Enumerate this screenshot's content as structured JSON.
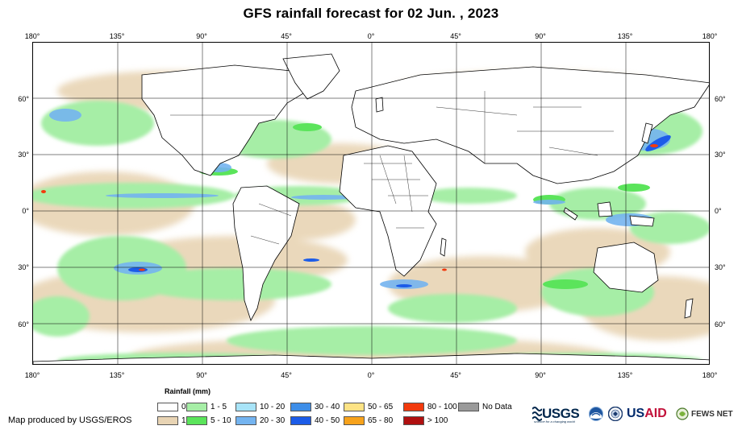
{
  "title": "GFS rainfall forecast for 02 Jun. , 2023",
  "longitude_labels": [
    "180°",
    "135°",
    "90°",
    "45°",
    "0°",
    "45°",
    "90°",
    "135°",
    "180°"
  ],
  "latitude_labels": [
    "60°",
    "30°",
    "0°",
    "30°",
    "60°"
  ],
  "legend": {
    "title": "Rainfall (mm)",
    "items": [
      {
        "label": "0",
        "color": "#ffffff"
      },
      {
        "label": "1",
        "color": "#e8d4b4"
      },
      {
        "label": "1 - 5",
        "color": "#a6eea6"
      },
      {
        "label": "5 - 10",
        "color": "#5be45b"
      },
      {
        "label": "10 - 20",
        "color": "#a8e4f8"
      },
      {
        "label": "20 - 30",
        "color": "#74b4f0"
      },
      {
        "label": "30 - 40",
        "color": "#3e8ee8"
      },
      {
        "label": "40 - 50",
        "color": "#1c5ce8"
      },
      {
        "label": "50 - 65",
        "color": "#fde385"
      },
      {
        "label": "65 - 80",
        "color": "#f7a21b"
      },
      {
        "label": "80 - 100",
        "color": "#f23a0d"
      },
      {
        "label": "> 100",
        "color": "#b01010"
      },
      {
        "label": "No Data",
        "color": "#9a9a9a"
      }
    ]
  },
  "credit": "Map produced by USGS/EROS",
  "logos": {
    "usgs": "USGS",
    "usgs_tagline": "science for a changing world",
    "noaa": "noaa-emblem-icon",
    "usaid_text": "US",
    "usaid_text_red": "AID",
    "fews": "FEWS NET"
  }
}
